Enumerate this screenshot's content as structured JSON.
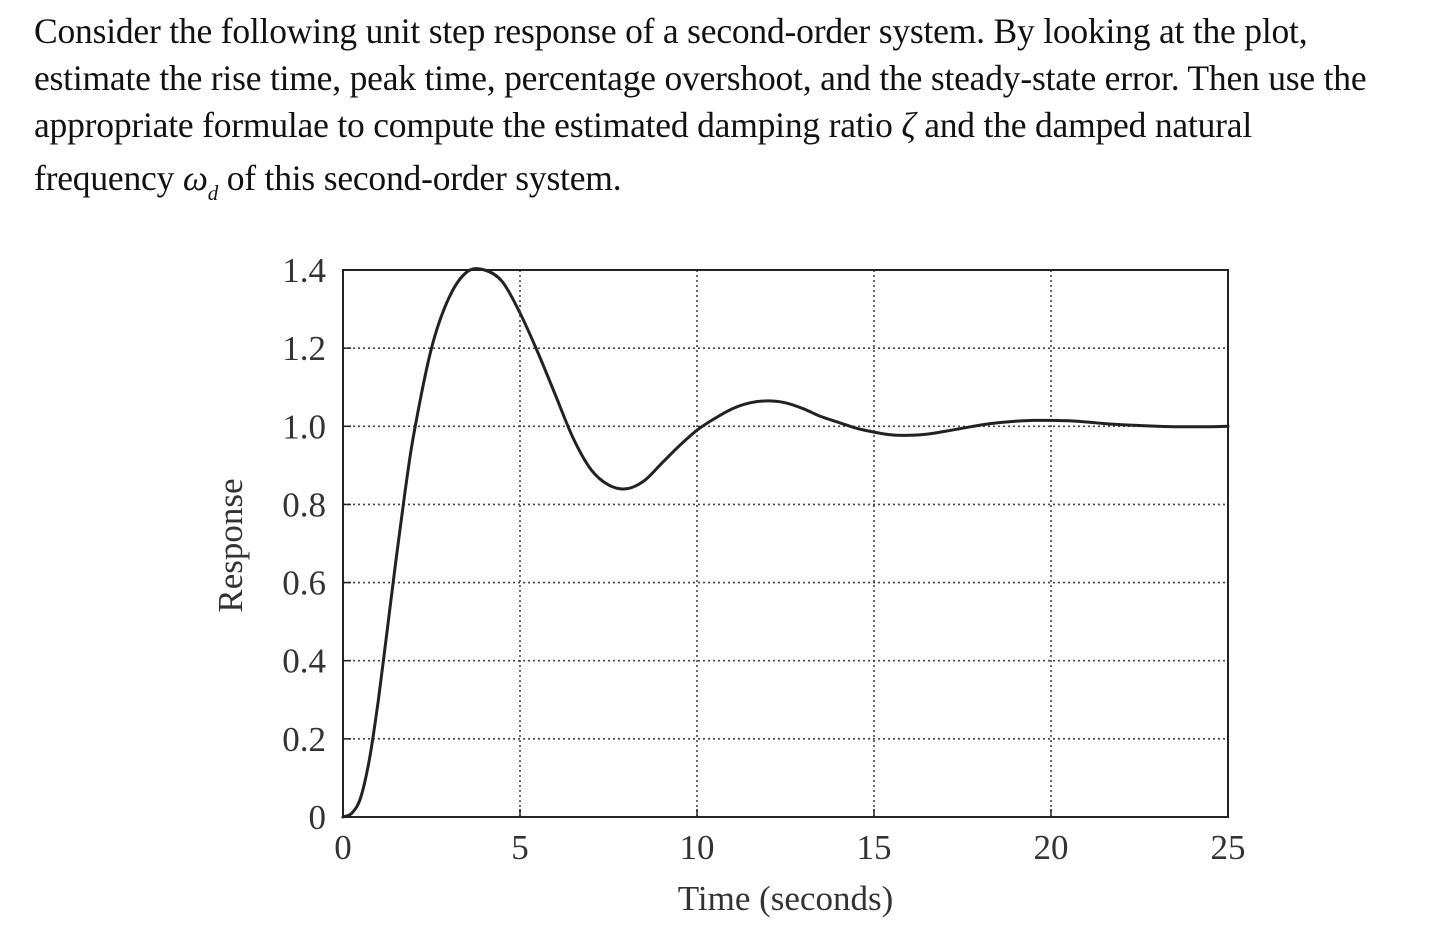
{
  "question": {
    "line1": "Consider the following unit step response of a second-order system. By looking at the plot,",
    "line2": "estimate the rise time, peak time, percentage overshoot, and the steady-state error. Then use the",
    "line3_pre": "appropriate formulae to compute the estimated damping ratio",
    "zeta_symbol": "ζ",
    "line3_post": "and the damped natural",
    "line4_pre": "frequency",
    "omega_symbol": "ω",
    "omega_subscript": "d",
    "line4_post": "of this second-order system."
  },
  "chart_data": {
    "type": "line",
    "title": "",
    "xlabel": "Time (seconds)",
    "ylabel": "Response",
    "xlim": [
      0,
      25
    ],
    "ylim": [
      0,
      1.4
    ],
    "x_ticks": [
      0,
      5,
      10,
      15,
      20,
      25
    ],
    "x_tick_labels": [
      "0",
      "5",
      "10",
      "15",
      "20",
      "25"
    ],
    "y_ticks": [
      0,
      0.2,
      0.4,
      0.6,
      0.8,
      1.0,
      1.2,
      1.4
    ],
    "y_tick_labels": [
      "0",
      "0.2",
      "0.4",
      "0.6",
      "0.8",
      "1.0",
      "1.2",
      "1.4"
    ],
    "grid": true,
    "grid_style": "dotted",
    "legend": "none",
    "line_color": "#222222",
    "series": [
      {
        "x": [
          0,
          0.25,
          0.5,
          0.75,
          1.0,
          1.25,
          1.5,
          1.75,
          2.0,
          2.5,
          3.0,
          3.5,
          4.0,
          4.5,
          5.0,
          5.5,
          6.0,
          6.5,
          7.0,
          7.5,
          8.0,
          8.5,
          9.0,
          9.5,
          10.0,
          10.5,
          11.0,
          11.5,
          12.0,
          12.5,
          13.0,
          13.5,
          14.0,
          14.5,
          15.0,
          15.5,
          16.0,
          16.5,
          17.0,
          17.5,
          18.0,
          18.5,
          19.0,
          19.5,
          20.0,
          20.5,
          21.0,
          21.5,
          22.0,
          22.5,
          23.0,
          23.5,
          24.0,
          24.5,
          25.0
        ],
        "y": [
          0,
          0.01,
          0.05,
          0.15,
          0.3,
          0.48,
          0.66,
          0.83,
          0.98,
          1.2,
          1.33,
          1.395,
          1.4,
          1.37,
          1.29,
          1.19,
          1.08,
          0.97,
          0.89,
          0.85,
          0.84,
          0.86,
          0.905,
          0.95,
          0.99,
          1.02,
          1.045,
          1.06,
          1.065,
          1.06,
          1.045,
          1.025,
          1.01,
          0.995,
          0.985,
          0.978,
          0.977,
          0.98,
          0.987,
          0.995,
          1.003,
          1.009,
          1.013,
          1.015,
          1.015,
          1.014,
          1.011,
          1.007,
          1.004,
          1.002,
          1.0,
          0.999,
          0.999,
          0.999,
          1.0
        ]
      }
    ]
  }
}
